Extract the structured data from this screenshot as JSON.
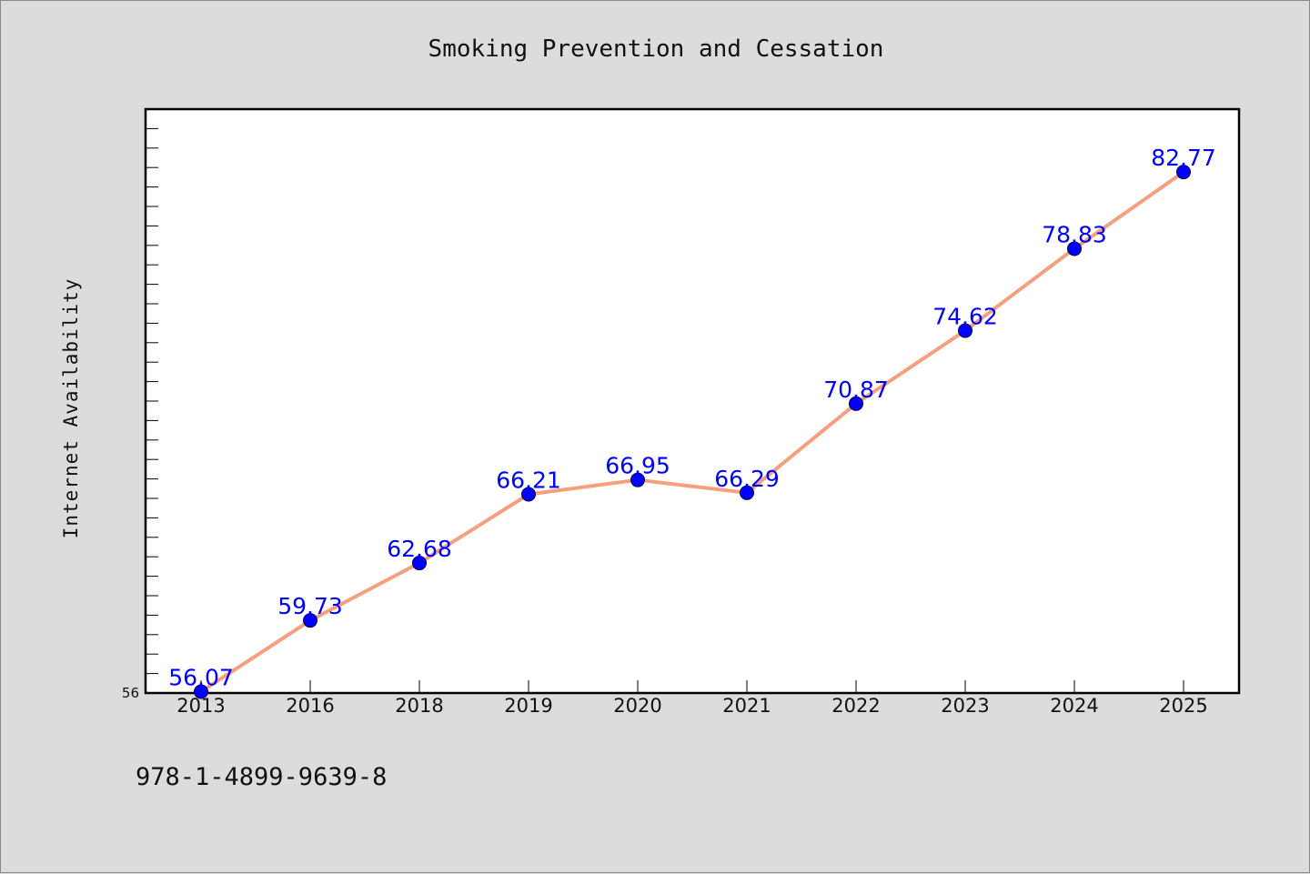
{
  "chart_data": {
    "type": "line",
    "title": "Smoking Prevention and Cessation",
    "xlabel": "",
    "ylabel": "Internet Availability",
    "categories": [
      "2013",
      "2016",
      "2018",
      "2019",
      "2020",
      "2021",
      "2022",
      "2023",
      "2024",
      "2025"
    ],
    "series": [
      {
        "values": [
          56.07,
          59.73,
          62.68,
          66.21,
          66.95,
          66.29,
          70.87,
          74.62,
          78.83,
          82.77
        ],
        "labels": [
          "56.07",
          "59.73",
          "62.68",
          "66.21",
          "66.95",
          "66.29",
          "70.87",
          "74.62",
          "78.83",
          "82.77"
        ]
      }
    ],
    "ylim": [
      56,
      86
    ],
    "ytick_labels": [
      "56"
    ],
    "grid": false,
    "line_color": "#f4a07e",
    "marker_color": "#0000ff",
    "label_color": "#0000ff"
  },
  "footer": {
    "code": "978-1-4899-9639-8"
  }
}
